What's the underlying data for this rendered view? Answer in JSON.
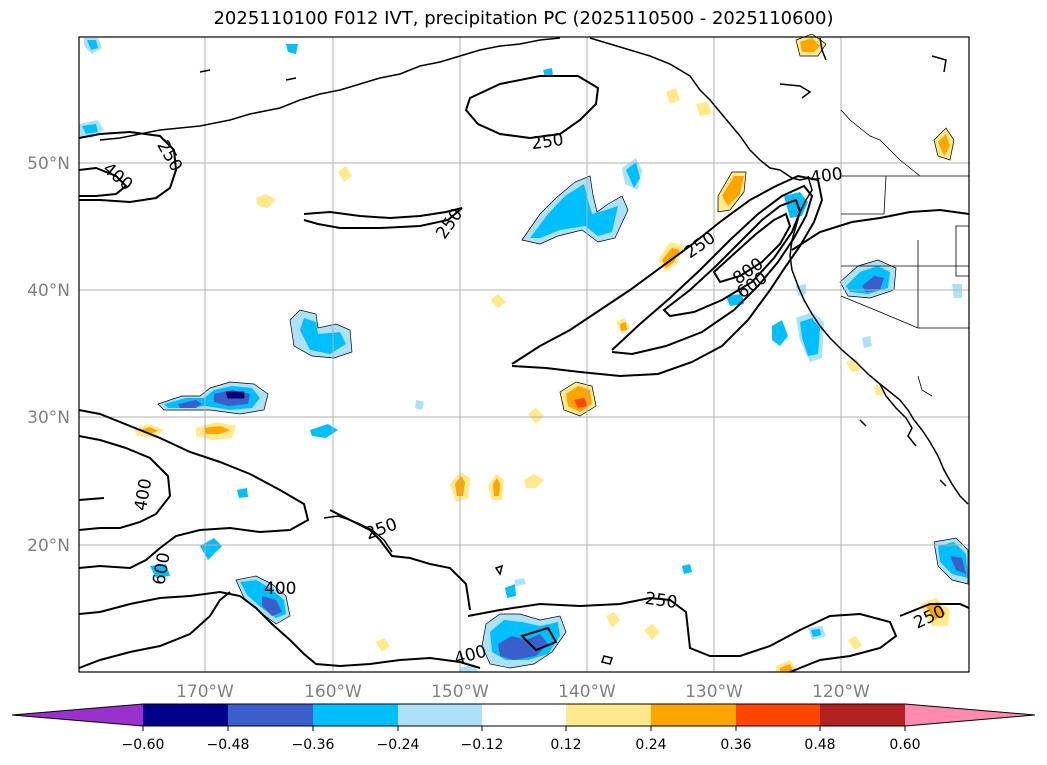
{
  "title": "2025110100 F012 IVT, precipitation PC (2025110500 - 2025110600)",
  "map": {
    "lon_range": [
      180,
      110
    ],
    "lat_range": [
      10,
      60
    ],
    "lat_labels": [
      "20°N",
      "30°N",
      "40°N",
      "50°N"
    ],
    "lon_labels": [
      "170°W",
      "160°W",
      "150°W",
      "140°W",
      "130°W",
      "120°W"
    ],
    "ivt_contour_labels": [
      "250",
      "400",
      "250",
      "250",
      "400",
      "250",
      "800",
      "600",
      "400",
      "250",
      "600",
      "400",
      "250",
      "400",
      "250"
    ]
  },
  "colorbar": {
    "ticks": [
      "−0.60",
      "−0.48",
      "−0.36",
      "−0.24",
      "−0.12",
      "0.12",
      "0.24",
      "0.36",
      "0.48",
      "0.60"
    ],
    "colors": [
      "#9932CC",
      "#00008B",
      "#3A5FCD",
      "#00BFFF",
      "#ADE1F8",
      "#FFFFFF",
      "#FFE98A",
      "#FFA500",
      "#FF4500",
      "#B22222",
      "#FF8AAE"
    ]
  }
}
